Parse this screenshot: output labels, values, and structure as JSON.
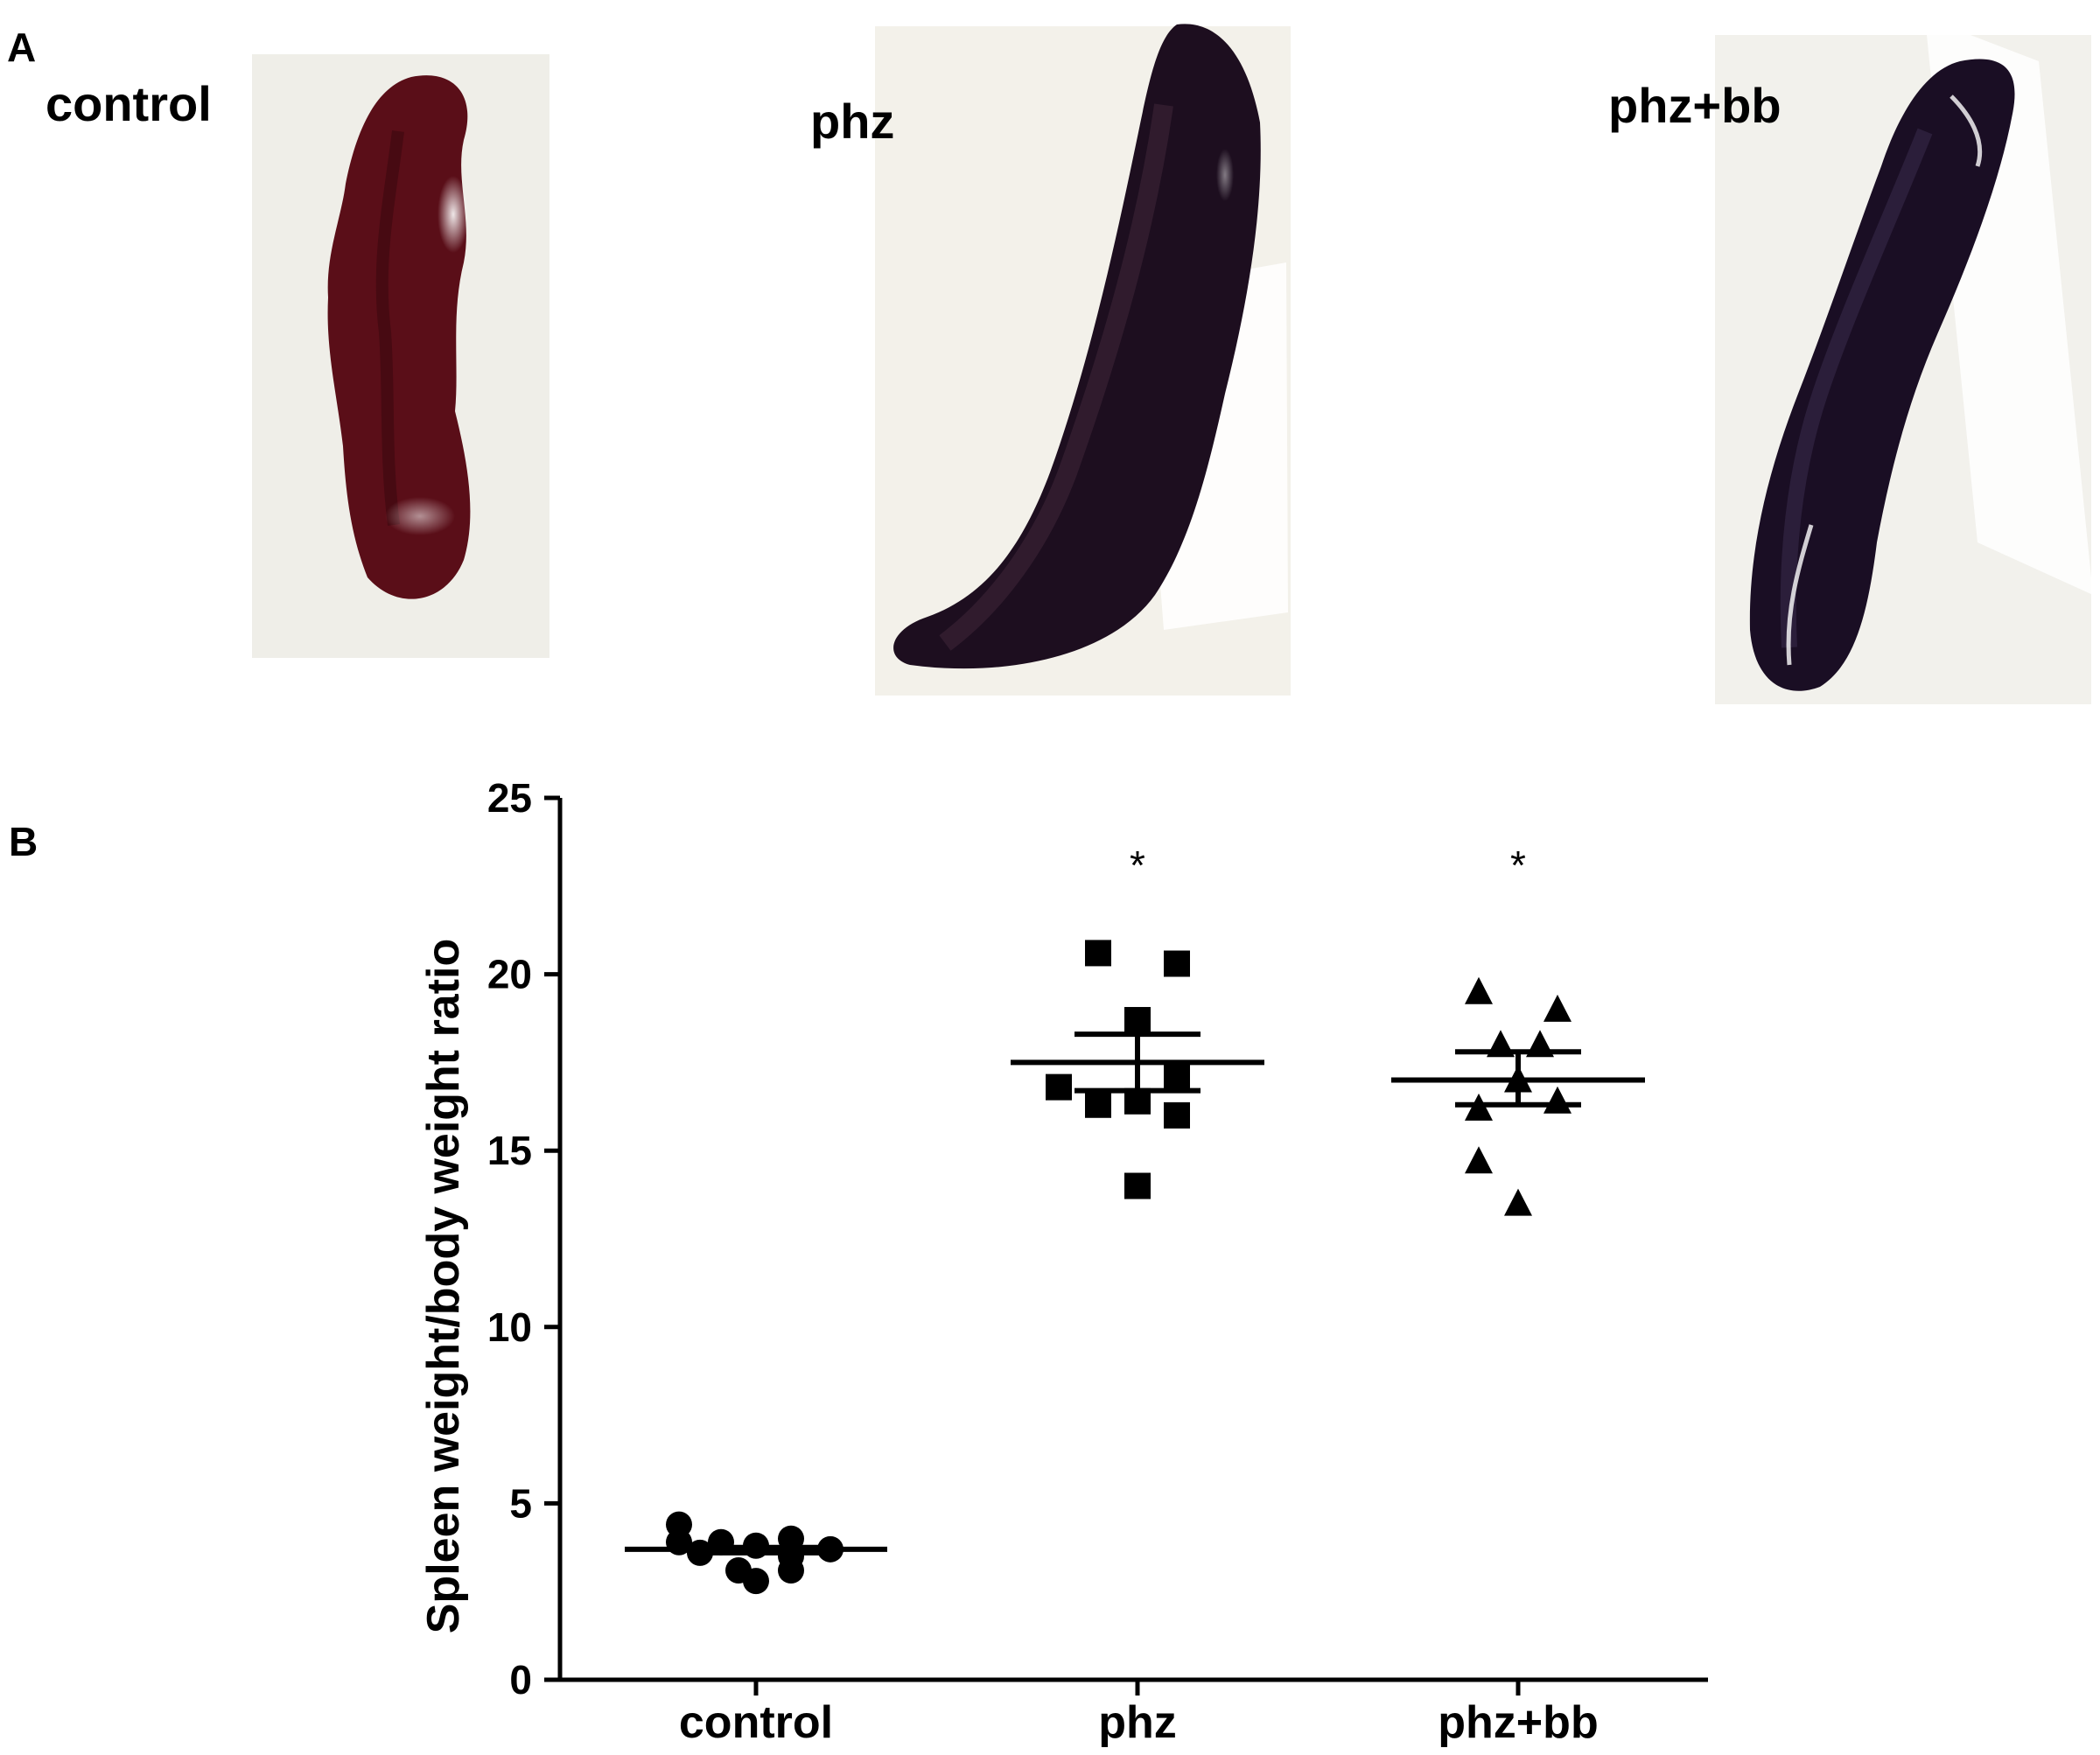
{
  "panel_a": {
    "letter": "A",
    "photos": [
      {
        "label": "control",
        "tissue_color": "#5a0e18",
        "highlight": "#ffffff"
      },
      {
        "label": "phz",
        "tissue_color": "#1d0e1f",
        "highlight": "#ffffff"
      },
      {
        "label": "phz+bb",
        "tissue_color": "#1a0e24",
        "highlight": "#ffffff"
      }
    ],
    "background_color": "#f1f0ea"
  },
  "panel_b": {
    "letter": "B"
  },
  "chart_data": {
    "type": "scatter",
    "subtype": "dot plot with mean and SEM",
    "title": "",
    "xlabel": "",
    "ylabel": "Spleen weight/body weight ratio",
    "categories": [
      "control",
      "phz",
      "phz+bb"
    ],
    "ylim": [
      0,
      25
    ],
    "yticks": [
      0,
      5,
      10,
      15,
      20,
      25
    ],
    "grid": false,
    "legend": "none",
    "groups": [
      {
        "category": "control",
        "marker": "circle",
        "points": [
          4.4,
          3.9,
          3.6,
          3.8,
          3.5,
          3.9,
          4.0,
          3.7,
          3.1,
          2.8,
          3.1
        ],
        "mean": 3.7,
        "sem_upper": 3.75,
        "sem_lower": 3.6,
        "significance": ""
      },
      {
        "category": "phz",
        "marker": "square",
        "points": [
          20.6,
          20.3,
          18.7,
          17.1,
          16.8,
          16.4,
          16.3,
          16.0,
          14.0
        ],
        "mean": 17.5,
        "sem_upper": 18.3,
        "sem_lower": 16.7,
        "significance": "*"
      },
      {
        "category": "phz+bb",
        "marker": "triangle",
        "points": [
          19.5,
          19.0,
          18.0,
          18.0,
          17.0,
          16.2,
          16.4,
          14.7,
          13.5
        ],
        "mean": 17.0,
        "sem_upper": 17.8,
        "sem_lower": 16.3,
        "significance": "*"
      }
    ]
  }
}
